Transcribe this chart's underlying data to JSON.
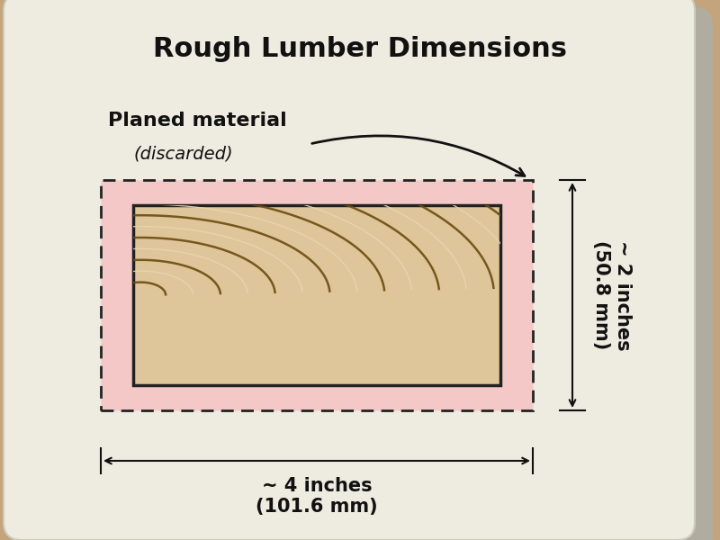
{
  "title": "Rough Lumber Dimensions",
  "label_planed": "Planed material",
  "label_discarded": "(discarded)",
  "label_width": "~ 4 inches\n(101.6 mm)",
  "label_height": "~ 2 inches\n(50.8 mm)",
  "bg_wood_color": "#c4a47c",
  "paper_color": "#eeebe0",
  "pink_border_color": "#f5c8c8",
  "wood_grain_light": "#e8d5b0",
  "wood_grain_dark": "#6b4c10",
  "wood_base": "#dfc59a",
  "dashed_border_color": "#222222",
  "dim_line_color": "#111111",
  "title_fontsize": 22,
  "label_fontsize": 16,
  "dim_fontsize": 15,
  "figsize": [
    8.0,
    6.0
  ],
  "dpi": 100
}
